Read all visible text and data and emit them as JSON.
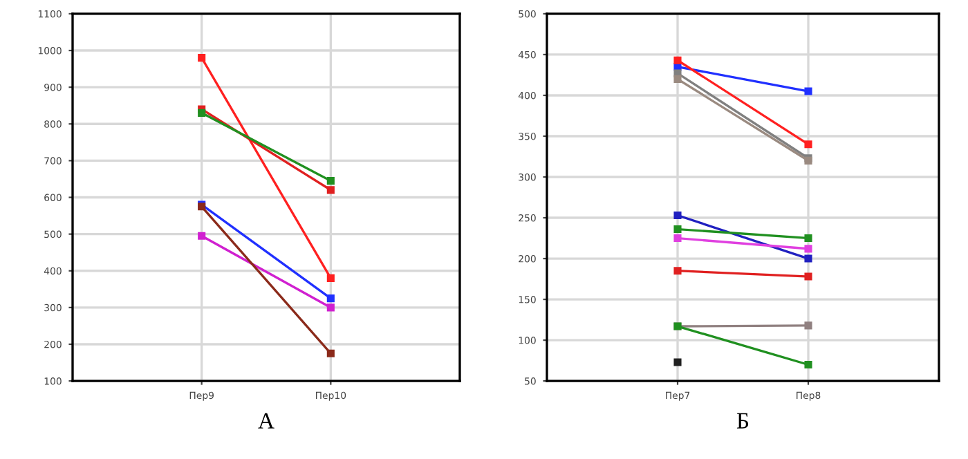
{
  "chart_data": [
    {
      "type": "line",
      "xlabel": "А",
      "categories": [
        "Пер9",
        "Пер10"
      ],
      "ylim": [
        100,
        1100
      ],
      "yticks": [
        100,
        200,
        300,
        400,
        500,
        600,
        700,
        800,
        900,
        1000,
        1100
      ],
      "grid": true,
      "marker": "square",
      "line_style": "solid",
      "legend": false,
      "series": [
        {
          "color": "#ff2020",
          "values": [
            980,
            380
          ]
        },
        {
          "color": "#e02020",
          "values": [
            840,
            620
          ]
        },
        {
          "color": "#209020",
          "values": [
            830,
            645
          ]
        },
        {
          "color": "#2030ff",
          "values": [
            580,
            325
          ]
        },
        {
          "color": "#d020d0",
          "values": [
            495,
            300
          ]
        },
        {
          "color": "#8b2a1a",
          "values": [
            575,
            175
          ]
        }
      ]
    },
    {
      "type": "line",
      "xlabel": "Б",
      "categories": [
        "Пер7",
        "Пер8"
      ],
      "ylim": [
        50,
        500
      ],
      "yticks": [
        50,
        100,
        150,
        200,
        250,
        300,
        350,
        400,
        450,
        500
      ],
      "grid": true,
      "marker": "square",
      "line_style": "solid",
      "legend": false,
      "series": [
        {
          "color": "#2030ff",
          "values": [
            435,
            405
          ]
        },
        {
          "color": "#ff2020",
          "values": [
            443,
            340
          ]
        },
        {
          "color": "#808080",
          "values": [
            427,
            323
          ]
        },
        {
          "color": "#9a8a80",
          "values": [
            420,
            320
          ]
        },
        {
          "color": "#2020c0",
          "values": [
            253,
            200
          ]
        },
        {
          "color": "#209020",
          "values": [
            236,
            225
          ]
        },
        {
          "color": "#e040e0",
          "values": [
            225,
            212
          ]
        },
        {
          "color": "#e02020",
          "values": [
            185,
            178
          ]
        },
        {
          "color": "#908080",
          "values": [
            117,
            118
          ]
        },
        {
          "color": "#209020",
          "values": [
            117,
            70
          ]
        },
        {
          "color": "#202020",
          "values": [
            73,
            null
          ]
        }
      ]
    }
  ]
}
